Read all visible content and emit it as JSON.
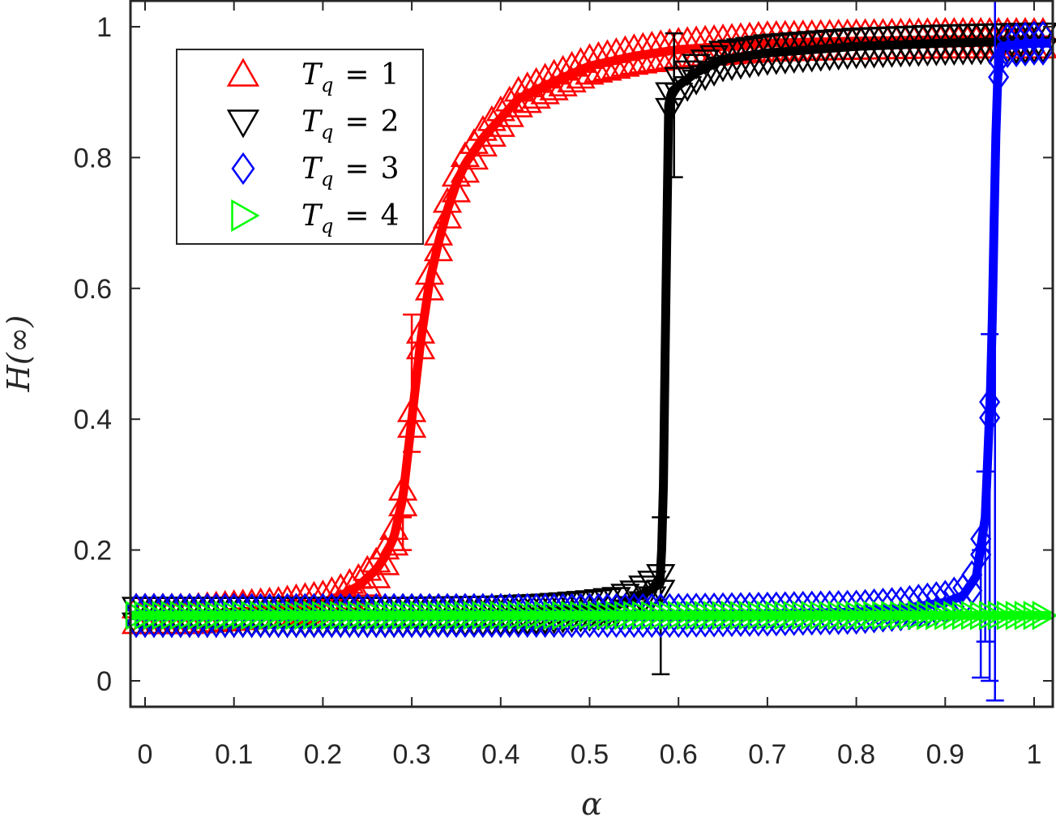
{
  "chart_data": {
    "type": "line",
    "title": "",
    "xlabel": "α",
    "ylabel": "H(∞)",
    "xlim": [
      -0.017,
      1.021
    ],
    "ylim": [
      -0.04,
      1.04
    ],
    "xticks": [
      0,
      0.1,
      0.2,
      0.3,
      0.4,
      0.5,
      0.6,
      0.7,
      0.8,
      0.9,
      1
    ],
    "xtick_labels": [
      "0",
      "0.1",
      "0.2",
      "0.3",
      "0.4",
      "0.5",
      "0.6",
      "0.7",
      "0.8",
      "0.9",
      "1"
    ],
    "yticks": [
      0,
      0.2,
      0.4,
      0.6,
      0.8,
      1
    ],
    "ytick_labels": [
      "0",
      "0.2",
      "0.4",
      "0.6",
      "0.8",
      "1"
    ],
    "grid": false,
    "legend_position": "upper left",
    "series": [
      {
        "name": "T_q = 1",
        "label_sub": "q",
        "label_value": "1",
        "color": "#ff0000",
        "marker": "triangle-up",
        "x": [
          0.0,
          0.05,
          0.1,
          0.15,
          0.2,
          0.22,
          0.24,
          0.26,
          0.27,
          0.28,
          0.29,
          0.3,
          0.31,
          0.32,
          0.33,
          0.34,
          0.35,
          0.36,
          0.38,
          0.4,
          0.42,
          0.45,
          0.5,
          0.55,
          0.6,
          0.7,
          0.8,
          0.9,
          1.0
        ],
        "values": [
          0.1,
          0.1,
          0.105,
          0.11,
          0.12,
          0.13,
          0.145,
          0.17,
          0.19,
          0.22,
          0.28,
          0.4,
          0.52,
          0.61,
          0.67,
          0.72,
          0.76,
          0.79,
          0.83,
          0.86,
          0.89,
          0.91,
          0.94,
          0.955,
          0.965,
          0.975,
          0.978,
          0.98,
          0.98
        ],
        "error_bars": [
          {
            "x": 0.3,
            "low": 0.35,
            "high": 0.56
          },
          {
            "x": 0.29,
            "low": 0.2,
            "high": 0.25
          }
        ]
      },
      {
        "name": "T_q = 2",
        "label_sub": "q",
        "label_value": "2",
        "color": "#000000",
        "marker": "triangle-down",
        "x": [
          0.0,
          0.1,
          0.2,
          0.3,
          0.4,
          0.45,
          0.5,
          0.53,
          0.55,
          0.57,
          0.58,
          0.583,
          0.586,
          0.589,
          0.592,
          0.6,
          0.62,
          0.65,
          0.7,
          0.8,
          0.9,
          1.0
        ],
        "values": [
          0.1,
          0.1,
          0.1,
          0.1,
          0.102,
          0.105,
          0.11,
          0.115,
          0.125,
          0.14,
          0.15,
          0.3,
          0.6,
          0.88,
          0.9,
          0.91,
          0.93,
          0.95,
          0.96,
          0.97,
          0.975,
          0.978
        ],
        "error_bars": [
          {
            "x": 0.58,
            "low": 0.01,
            "high": 0.25
          },
          {
            "x": 0.595,
            "low": 0.77,
            "high": 0.99
          }
        ]
      },
      {
        "name": "T_q = 3",
        "label_sub": "q",
        "label_value": "3",
        "color": "#0000ff",
        "marker": "diamond",
        "x": [
          0.0,
          0.1,
          0.2,
          0.3,
          0.4,
          0.5,
          0.6,
          0.7,
          0.8,
          0.85,
          0.9,
          0.92,
          0.935,
          0.945,
          0.952,
          0.955,
          0.958,
          0.962,
          1.0
        ],
        "values": [
          0.1,
          0.1,
          0.1,
          0.1,
          0.1,
          0.1,
          0.1,
          0.102,
          0.105,
          0.11,
          0.12,
          0.13,
          0.16,
          0.25,
          0.48,
          0.7,
          0.9,
          0.97,
          0.975
        ],
        "error_bars": [
          {
            "x": 0.94,
            "low": 0.005,
            "high": 0.2
          },
          {
            "x": 0.945,
            "low": 0.06,
            "high": 0.32
          },
          {
            "x": 0.95,
            "low": 0.0,
            "high": 0.53
          },
          {
            "x": 0.956,
            "low": -0.03,
            "high": 1.05
          }
        ]
      },
      {
        "name": "T_q = 4",
        "label_sub": "q",
        "label_value": "4",
        "color": "#00ff00",
        "marker": "triangle-right",
        "x": [
          0.0,
          0.25,
          0.5,
          0.75,
          1.0
        ],
        "values": [
          0.1,
          0.1,
          0.1,
          0.1,
          0.1
        ],
        "error_bars": []
      }
    ]
  },
  "legend": {
    "prefix": "T",
    "equals": "="
  }
}
